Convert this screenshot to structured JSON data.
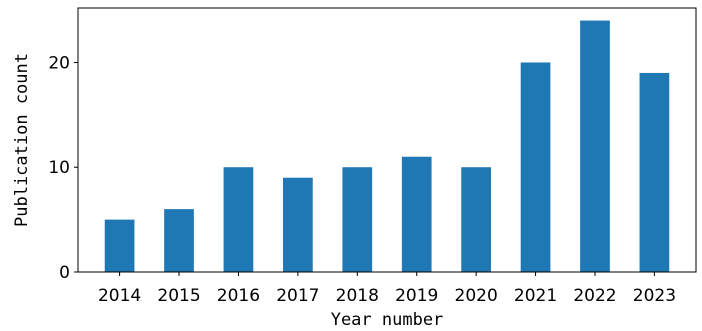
{
  "chart_data": {
    "type": "bar",
    "categories": [
      "2014",
      "2015",
      "2016",
      "2017",
      "2018",
      "2019",
      "2020",
      "2021",
      "2022",
      "2023"
    ],
    "values": [
      5,
      6,
      10,
      9,
      10,
      11,
      10,
      20,
      24,
      19
    ],
    "title": "",
    "xlabel": "Year number",
    "ylabel": "Publication count",
    "ylim": [
      0,
      25.2
    ],
    "yticks": [
      0,
      10,
      20
    ],
    "bar_color": "#1f77b4",
    "grid": false,
    "legend": "none"
  }
}
